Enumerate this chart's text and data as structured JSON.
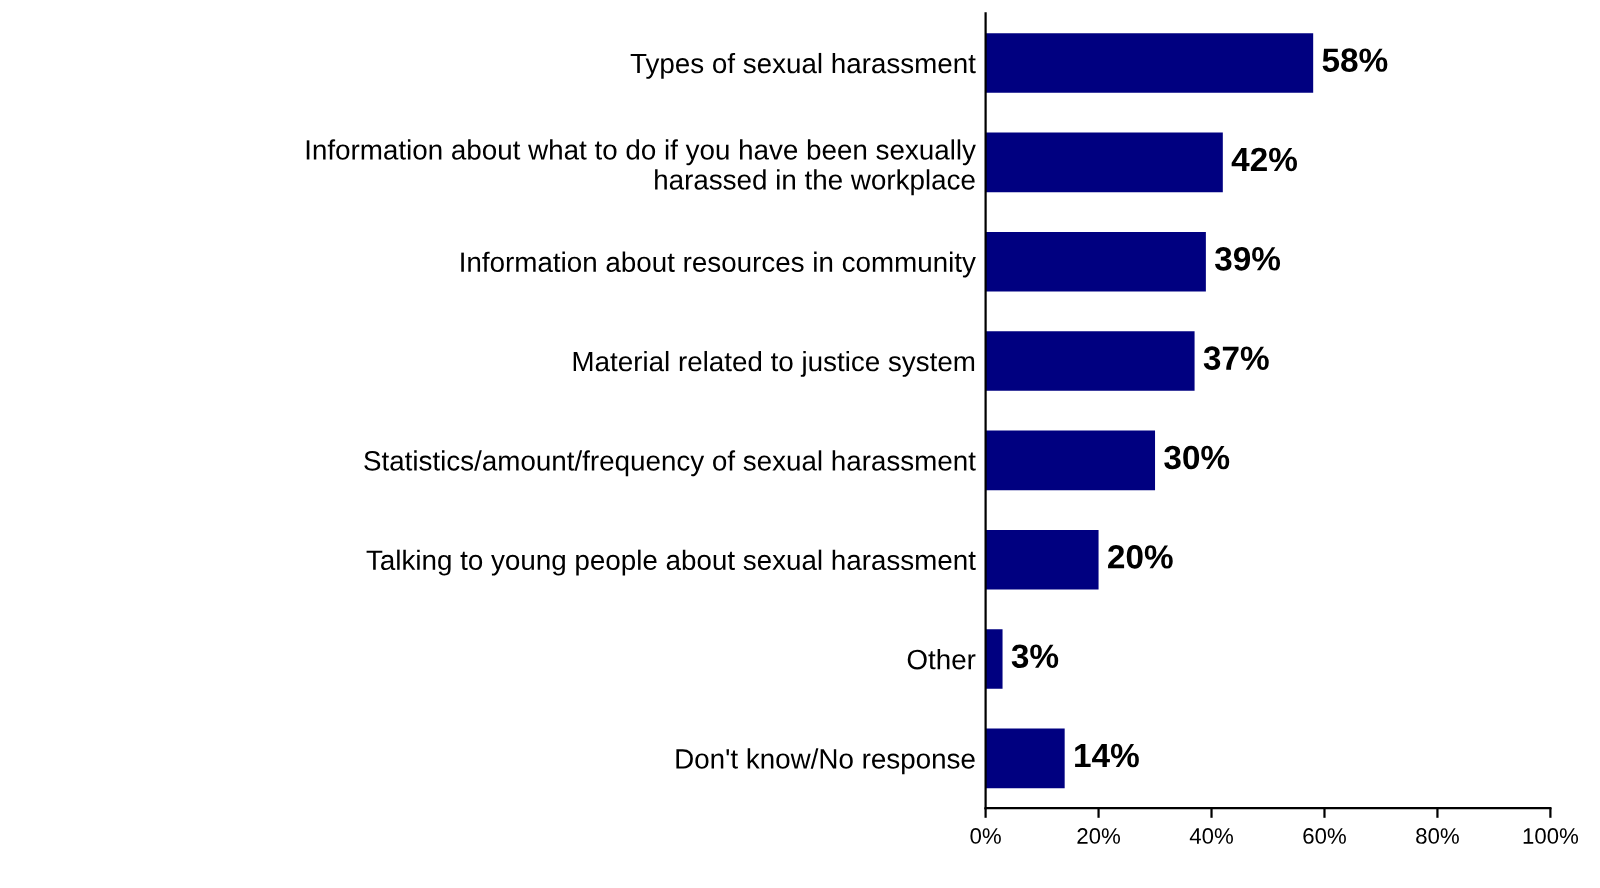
{
  "chart_data": {
    "type": "bar",
    "orientation": "horizontal",
    "categories": [
      "Types of sexual harassment",
      "Information about what to do if you have been sexually\nharassed in the workplace",
      "Information about resources in community",
      "Material related to justice system",
      "Statistics/amount/frequency of sexual harassment",
      "Talking to young people about sexual harassment",
      "Other",
      "Don't know/No response"
    ],
    "values": [
      58,
      42,
      39,
      37,
      30,
      20,
      3,
      14
    ],
    "color": "#000080",
    "value_labels": [
      "58%",
      "42%",
      "39%",
      "37%",
      "30%",
      "20%",
      "3%",
      "14%"
    ],
    "xlim": [
      0,
      100
    ],
    "xticks": [
      {
        "value": 0,
        "label": "0%"
      },
      {
        "value": 20,
        "label": "20%"
      },
      {
        "value": 40,
        "label": "40%"
      },
      {
        "value": 60,
        "label": "60%"
      },
      {
        "value": 80,
        "label": "80%"
      },
      {
        "value": 100,
        "label": "100%"
      }
    ],
    "grid": false,
    "legend": false
  }
}
